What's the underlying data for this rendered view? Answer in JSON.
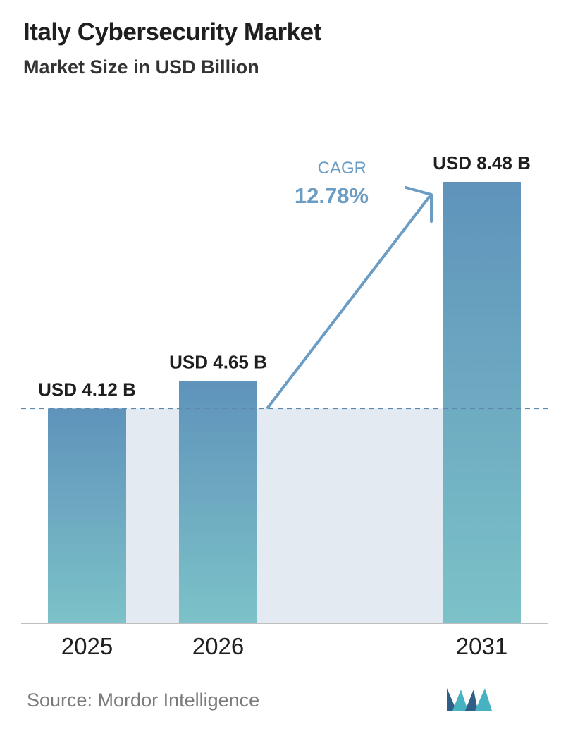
{
  "chart_data": {
    "type": "bar",
    "title": "Italy Cybersecurity Market",
    "subtitle": "Market Size in USD Billion",
    "categories": [
      "2025",
      "2026",
      "2031"
    ],
    "values": [
      4.12,
      4.65,
      8.48
    ],
    "value_labels": [
      "USD 4.12 B",
      "USD 4.65 B",
      "USD 8.48 B"
    ],
    "ylim": [
      0,
      8.48
    ],
    "grid": false,
    "annotation": {
      "label": "CAGR",
      "value": "12.78%"
    },
    "reference_line": {
      "value": 4.12,
      "style": "dashed"
    }
  },
  "source": "Source:  Mordor Intelligence",
  "logo": {
    "name": "mordor-intelligence-logo"
  },
  "colors": {
    "bar_top": "#5f93bb",
    "bar_bottom": "#7cc2c8",
    "band": "#e3eaf1",
    "arrow": "#6b9cc3",
    "cagr_text": "#6b9cc3",
    "baseline": "#bfbfbf",
    "dash": "#5e88ac",
    "logo_dark": "#2f5f86",
    "logo_light": "#46b2c2"
  }
}
